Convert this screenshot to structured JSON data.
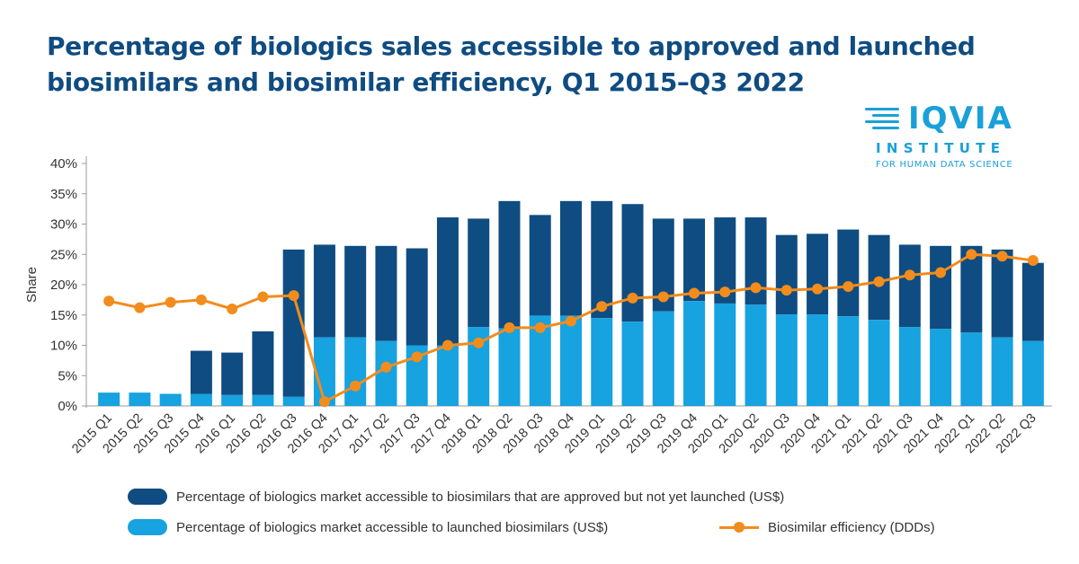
{
  "title": "Percentage of biologics sales accessible to approved and launched biosimilars and biosimilar efficiency, Q1 2015–Q3 2022",
  "logo": {
    "name": "IQVIA",
    "line1": "INSTITUTE",
    "line2": "FOR HUMAN DATA SCIENCE"
  },
  "colors": {
    "approved": "#0f4c81",
    "launched": "#17a2e0",
    "efficiency": "#f28c1c",
    "title": "#0f4c81"
  },
  "chart_data": {
    "type": "bar",
    "stacked": true,
    "title": "",
    "xlabel": "",
    "ylabel": "Share",
    "ylim": [
      0,
      40
    ],
    "yticks": [
      "0%",
      "5%",
      "10%",
      "15%",
      "20%",
      "25%",
      "30%",
      "35%",
      "40%"
    ],
    "ytick_values": [
      0,
      5,
      10,
      15,
      20,
      25,
      30,
      35,
      40
    ],
    "categories": [
      "2015 Q1",
      "2015 Q2",
      "2015 Q3",
      "2015 Q4",
      "2016 Q1",
      "2016 Q2",
      "2016 Q3",
      "2016 Q4",
      "2017 Q1",
      "2017 Q2",
      "2017 Q3",
      "2017 Q4",
      "2018 Q1",
      "2018 Q2",
      "2018 Q3",
      "2018 Q4",
      "2019 Q1",
      "2019 Q2",
      "2019 Q3",
      "2019 Q4",
      "2020 Q1",
      "2020 Q2",
      "2020 Q3",
      "2020 Q4",
      "2021 Q1",
      "2021 Q2",
      "2021 Q3",
      "2021 Q4",
      "2022 Q1",
      "2022 Q2",
      "2022 Q3"
    ],
    "series": [
      {
        "name": "Percentage of biologics market accessible to launched biosimilars (US$)",
        "kind": "bar-bottom",
        "values": [
          2.2,
          2.2,
          2.0,
          2.0,
          1.8,
          1.8,
          1.5,
          11.3,
          11.3,
          10.7,
          10.0,
          10.0,
          13.0,
          12.8,
          14.9,
          14.9,
          14.5,
          13.9,
          15.6,
          17.3,
          16.9,
          16.7,
          15.1,
          15.1,
          14.8,
          14.2,
          13.0,
          12.7,
          12.1,
          11.3,
          10.7
        ]
      },
      {
        "name": "Percentage of biologics market accessible to biosimilars that are approved but not yet launched (US$)",
        "kind": "bar-top",
        "values": [
          0,
          0,
          0,
          7.1,
          7.0,
          10.5,
          24.3,
          15.3,
          15.1,
          15.7,
          16.0,
          21.1,
          17.9,
          21.0,
          16.6,
          18.9,
          19.3,
          19.4,
          15.3,
          13.6,
          14.2,
          14.4,
          13.1,
          13.3,
          14.3,
          14.0,
          13.6,
          13.7,
          14.3,
          14.5,
          12.9
        ]
      },
      {
        "name": "Biosimilar efficiency (DDDs)",
        "kind": "line",
        "values": [
          17.3,
          16.2,
          17.1,
          17.5,
          16.0,
          18.0,
          18.2,
          0.7,
          3.3,
          6.4,
          8.1,
          10.0,
          10.4,
          12.9,
          12.9,
          14.0,
          16.4,
          17.8,
          18.0,
          18.6,
          18.8,
          19.5,
          19.1,
          19.3,
          19.7,
          20.5,
          21.6,
          22.0,
          25.0,
          24.7,
          24.0
        ]
      }
    ]
  },
  "legend": {
    "approved": "Percentage of biologics market accessible to biosimilars that are approved but not yet launched (US$)",
    "launched": "Percentage of biologics market accessible to launched biosimilars (US$)",
    "efficiency": "Biosimilar efficiency (DDDs)"
  }
}
